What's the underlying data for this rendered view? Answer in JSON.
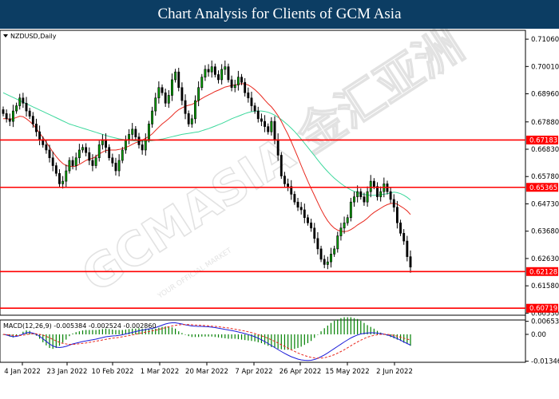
{
  "header": {
    "title": "Chart Analysis for Clients of GCM Asia"
  },
  "chart_data": {
    "type": "candlestick",
    "symbol_label": "NZDUSD,Daily",
    "price_axis": {
      "range": [
        0.6045,
        0.714
      ],
      "ticks": [
        0.7106,
        0.7001,
        0.6896,
        0.6788,
        0.6683,
        0.6578,
        0.6473,
        0.6368,
        0.6263,
        0.6158,
        0.6053
      ],
      "tick_labels": [
        "0.71060",
        "0.70010",
        "0.68960",
        "0.67880",
        "0.66830",
        "0.65780",
        "0.64730",
        "0.63680",
        "0.62630",
        "0.61580",
        "0.60530"
      ]
    },
    "levels": [
      {
        "value": 0.67183,
        "label": "0.67183",
        "color": "#ff0000"
      },
      {
        "value": 0.65365,
        "label": "0.65365",
        "color": "#ff0000"
      },
      {
        "value": 0.62128,
        "label": "0.62128",
        "color": "#ff0000"
      },
      {
        "value": 0.60719,
        "label": "0.60719",
        "color": "#ff0000"
      }
    ],
    "date_labels": [
      "4 Jan 2022",
      "23 Jan 2022",
      "10 Feb 2022",
      "1 Mar 2022",
      "20 Mar 2022",
      "7 Apr 2022",
      "26 Apr 2022",
      "15 May 2022",
      "2 Jun 2022"
    ],
    "close_series": [
      0.682,
      0.68,
      0.679,
      0.683,
      0.685,
      0.688,
      0.686,
      0.683,
      0.681,
      0.678,
      0.675,
      0.672,
      0.67,
      0.668,
      0.665,
      0.662,
      0.659,
      0.655,
      0.656,
      0.66,
      0.664,
      0.662,
      0.665,
      0.668,
      0.669,
      0.667,
      0.664,
      0.662,
      0.665,
      0.67,
      0.672,
      0.669,
      0.665,
      0.663,
      0.66,
      0.664,
      0.668,
      0.672,
      0.674,
      0.676,
      0.673,
      0.67,
      0.668,
      0.672,
      0.678,
      0.683,
      0.688,
      0.692,
      0.69,
      0.686,
      0.689,
      0.695,
      0.698,
      0.692,
      0.687,
      0.682,
      0.678,
      0.68,
      0.687,
      0.692,
      0.696,
      0.699,
      0.698,
      0.7,
      0.697,
      0.695,
      0.699,
      0.7,
      0.695,
      0.692,
      0.693,
      0.696,
      0.694,
      0.69,
      0.688,
      0.685,
      0.683,
      0.68,
      0.679,
      0.677,
      0.675,
      0.679,
      0.672,
      0.666,
      0.658,
      0.655,
      0.654,
      0.651,
      0.648,
      0.646,
      0.645,
      0.642,
      0.64,
      0.638,
      0.634,
      0.63,
      0.626,
      0.624,
      0.625,
      0.628,
      0.63,
      0.635,
      0.638,
      0.64,
      0.642,
      0.648,
      0.65,
      0.652,
      0.65,
      0.648,
      0.652,
      0.656,
      0.654,
      0.65,
      0.652,
      0.655,
      0.652,
      0.649,
      0.646,
      0.64,
      0.636,
      0.633,
      0.627,
      0.623
    ],
    "sma_red": [
      0.68,
      0.68,
      0.6798,
      0.68,
      0.6805,
      0.681,
      0.6808,
      0.68,
      0.679,
      0.6778,
      0.6762,
      0.6745,
      0.6728,
      0.671,
      0.6692,
      0.6672,
      0.6655,
      0.664,
      0.6628,
      0.662,
      0.6618,
      0.6616,
      0.6618,
      0.6625,
      0.6632,
      0.664,
      0.6645,
      0.6648,
      0.6655,
      0.6665,
      0.6672,
      0.6678,
      0.668,
      0.668,
      0.668,
      0.6682,
      0.6685,
      0.669,
      0.6695,
      0.6702,
      0.6708,
      0.6712,
      0.6718,
      0.6725,
      0.6732,
      0.6742,
      0.6755,
      0.6768,
      0.678,
      0.679,
      0.68,
      0.6812,
      0.6825,
      0.6835,
      0.6842,
      0.6848,
      0.6852,
      0.6855,
      0.6862,
      0.687,
      0.6878,
      0.6885,
      0.6892,
      0.6898,
      0.6905,
      0.691,
      0.6916,
      0.6922,
      0.6925,
      0.6928,
      0.693,
      0.6933,
      0.6935,
      0.6934,
      0.693,
      0.6922,
      0.6912,
      0.69,
      0.6887,
      0.6872,
      0.6858,
      0.6846,
      0.683,
      0.6812,
      0.679,
      0.6765,
      0.674,
      0.6712,
      0.6682,
      0.6652,
      0.662,
      0.659,
      0.656,
      0.6532,
      0.6505,
      0.6478,
      0.6452,
      0.6428,
      0.6408,
      0.6392,
      0.638,
      0.6372,
      0.6368,
      0.6366,
      0.6368,
      0.6374,
      0.6382,
      0.6392,
      0.64,
      0.6408,
      0.6418,
      0.643,
      0.644,
      0.6448,
      0.6456,
      0.6464,
      0.647,
      0.6474,
      0.6476,
      0.6472,
      0.6464,
      0.6456,
      0.6446,
      0.6432
    ],
    "sma_green": [
      0.69,
      0.6894,
      0.6888,
      0.6882,
      0.6876,
      0.687,
      0.6864,
      0.6858,
      0.6852,
      0.6846,
      0.684,
      0.6834,
      0.6828,
      0.6822,
      0.6816,
      0.681,
      0.6804,
      0.6798,
      0.6792,
      0.6786,
      0.678,
      0.6776,
      0.6772,
      0.6768,
      0.6764,
      0.676,
      0.6756,
      0.6752,
      0.6748,
      0.6744,
      0.674,
      0.6736,
      0.6732,
      0.6729,
      0.6726,
      0.6723,
      0.6721,
      0.6719,
      0.6717,
      0.6716,
      0.6715,
      0.6714,
      0.6714,
      0.6714,
      0.6715,
      0.6716,
      0.6718,
      0.672,
      0.6722,
      0.6725,
      0.6728,
      0.6731,
      0.6734,
      0.6737,
      0.674,
      0.6742,
      0.6744,
      0.6746,
      0.6748,
      0.675,
      0.6754,
      0.6758,
      0.6762,
      0.6767,
      0.6772,
      0.6777,
      0.6782,
      0.6788,
      0.6794,
      0.68,
      0.6805,
      0.681,
      0.6815,
      0.682,
      0.6824,
      0.6827,
      0.6829,
      0.683,
      0.683,
      0.6828,
      0.6825,
      0.682,
      0.6814,
      0.6806,
      0.6797,
      0.6787,
      0.6776,
      0.6764,
      0.6751,
      0.6737,
      0.6722,
      0.6706,
      0.669,
      0.6674,
      0.6658,
      0.6642,
      0.6626,
      0.6611,
      0.6597,
      0.6584,
      0.6572,
      0.6561,
      0.6551,
      0.6542,
      0.6534,
      0.6527,
      0.6521,
      0.6516,
      0.6512,
      0.6509,
      0.6507,
      0.6506,
      0.6506,
      0.6507,
      0.6508,
      0.651,
      0.6512,
      0.6515,
      0.6518,
      0.6516,
      0.6512,
      0.6506,
      0.6498,
      0.6488
    ],
    "macd_label": "MACD(12,26,9) -0.005384 -0.002524 -0.002860",
    "macd_axis": {
      "range": [
        -0.014,
        0.0072
      ],
      "ticks": [
        0.006534,
        0.0,
        -0.013464
      ],
      "tick_labels": [
        "0.006534",
        "0.00",
        "-0.013464"
      ]
    },
    "macd_line": [
      0.0,
      -0.0003,
      -0.0008,
      -0.0012,
      -0.001,
      -0.0006,
      0.0002,
      0.0008,
      0.001,
      0.0006,
      0.0,
      -0.001,
      -0.0022,
      -0.0035,
      -0.0048,
      -0.0058,
      -0.0064,
      -0.0066,
      -0.0064,
      -0.006,
      -0.0054,
      -0.0048,
      -0.0044,
      -0.004,
      -0.0036,
      -0.0033,
      -0.003,
      -0.0027,
      -0.0024,
      -0.002,
      -0.0016,
      -0.0012,
      -0.001,
      -0.0008,
      -0.0007,
      -0.0005,
      -0.0002,
      0.0002,
      0.0006,
      0.001,
      0.0014,
      0.0018,
      0.0021,
      0.0024,
      0.0027,
      0.003,
      0.0034,
      0.004,
      0.0046,
      0.0052,
      0.0056,
      0.0058,
      0.0058,
      0.0055,
      0.0052,
      0.0048,
      0.0045,
      0.0042,
      0.0041,
      0.004,
      0.004,
      0.0039,
      0.0038,
      0.0036,
      0.0034,
      0.0031,
      0.0028,
      0.0025,
      0.0022,
      0.0019,
      0.0016,
      0.0012,
      0.0008,
      0.0004,
      -0.0001,
      -0.0006,
      -0.0012,
      -0.0019,
      -0.0027,
      -0.0036,
      -0.0046,
      -0.0056,
      -0.0066,
      -0.0076,
      -0.0086,
      -0.0095,
      -0.0104,
      -0.0112,
      -0.0118,
      -0.0124,
      -0.0128,
      -0.013,
      -0.0131,
      -0.013,
      -0.0126,
      -0.012,
      -0.0112,
      -0.0103,
      -0.0093,
      -0.0082,
      -0.0071,
      -0.006,
      -0.0049,
      -0.0038,
      -0.0028,
      -0.0018,
      -0.001,
      -0.0003,
      0.0002,
      0.0005,
      0.0007,
      0.0008,
      0.0008,
      0.0006,
      0.0004,
      0.0001,
      -0.0003,
      -0.0008,
      -0.0014,
      -0.0021,
      -0.0029,
      -0.0038,
      -0.0046,
      -0.0054
    ],
    "signal_line": [
      0.0,
      -0.0001,
      -0.0003,
      -0.0005,
      -0.0006,
      -0.0006,
      -0.0004,
      -0.0001,
      0.0002,
      0.0003,
      0.0003,
      0.0,
      -0.0004,
      -0.001,
      -0.0017,
      -0.0025,
      -0.0033,
      -0.004,
      -0.0045,
      -0.0048,
      -0.005,
      -0.005,
      -0.0049,
      -0.0047,
      -0.0045,
      -0.0043,
      -0.004,
      -0.0037,
      -0.0034,
      -0.0031,
      -0.0028,
      -0.0025,
      -0.0022,
      -0.0019,
      -0.0017,
      -0.0015,
      -0.0012,
      -0.0009,
      -0.0006,
      -0.0003,
      0.0001,
      0.0004,
      0.0008,
      0.0011,
      0.0014,
      0.0018,
      0.0021,
      0.0025,
      0.0029,
      0.0034,
      0.0038,
      0.0042,
      0.0045,
      0.0048,
      0.0049,
      0.0049,
      0.0049,
      0.0048,
      0.0047,
      0.0046,
      0.0045,
      0.0044,
      0.0043,
      0.0041,
      0.004,
      0.0038,
      0.0036,
      0.0034,
      0.0032,
      0.0029,
      0.0026,
      0.0023,
      0.002,
      0.0017,
      0.0013,
      0.0009,
      0.0004,
      -0.0001,
      -0.0007,
      -0.0013,
      -0.002,
      -0.0027,
      -0.0035,
      -0.0043,
      -0.0052,
      -0.006,
      -0.0069,
      -0.0077,
      -0.0085,
      -0.0093,
      -0.01,
      -0.0106,
      -0.0111,
      -0.0115,
      -0.0118,
      -0.0119,
      -0.0119,
      -0.0117,
      -0.0113,
      -0.0108,
      -0.0102,
      -0.0094,
      -0.0086,
      -0.0077,
      -0.0067,
      -0.0057,
      -0.0047,
      -0.0038,
      -0.0029,
      -0.0021,
      -0.0014,
      -0.0009,
      -0.0005,
      -0.0002,
      0.0,
      0.0001,
      0.0,
      -0.0002,
      -0.0005,
      -0.0009,
      -0.0014,
      -0.0019,
      -0.0024,
      -0.0028
    ]
  },
  "watermark": {
    "text": "GCMASIA 金汇亚洲",
    "sub": "YOUR OFFICIAL MARKET"
  },
  "colors": {
    "banner": "#0c3d63",
    "level": "#ff0000",
    "bull": "#00a000",
    "bear": "#000000",
    "sma_red": "#e8281e",
    "sma_green": "#3cd89c",
    "macd": "#1b1bd8",
    "signal": "#e8281e",
    "hist": "#008000"
  }
}
